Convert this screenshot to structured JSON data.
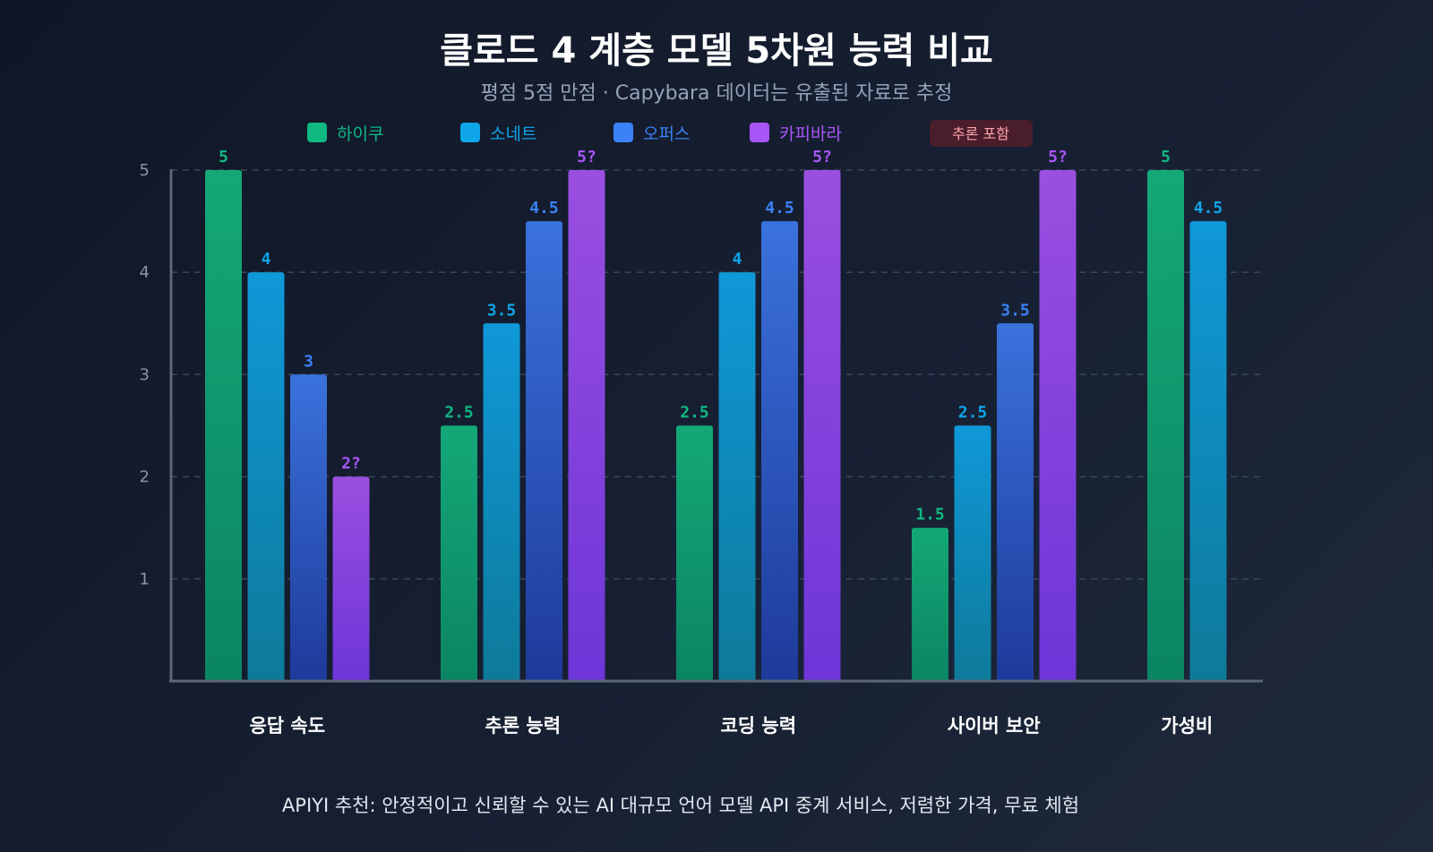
{
  "chart_data": {
    "type": "bar",
    "title": "클로드 4 계층 모델 5차원 능력 비교",
    "subtitle": "평점 5점 만점 · Capybara 데이터는 유출된 자료로 추정",
    "categories": [
      "응답 속도",
      "추론 능력",
      "코딩 능력",
      "사이버 보안",
      "가성비"
    ],
    "ylim": [
      0,
      5
    ],
    "yticks": [
      1,
      2,
      3,
      4,
      5
    ],
    "grid": true,
    "legend_position": "top",
    "series": [
      {
        "name": "하이쿠",
        "color": "#10b981",
        "values": [
          5,
          2.5,
          2.5,
          1.5,
          5
        ],
        "labels": [
          "5",
          "2.5",
          "2.5",
          "1.5",
          "5"
        ]
      },
      {
        "name": "소네트",
        "color": "#0ea5e9",
        "values": [
          4,
          3.5,
          4,
          2.5,
          4.5
        ],
        "labels": [
          "4",
          "3.5",
          "4",
          "2.5",
          "4.5"
        ]
      },
      {
        "name": "오퍼스",
        "color": "#3b82f6",
        "values": [
          3,
          4.5,
          4.5,
          3.5,
          null
        ],
        "labels": [
          "3",
          "4.5",
          "4.5",
          "3.5",
          ""
        ]
      },
      {
        "name": "카피바라",
        "color": "#a855f7",
        "values": [
          2,
          5,
          5,
          5,
          null
        ],
        "labels": [
          "2?",
          "5?",
          "5?",
          "5?",
          ""
        ]
      }
    ],
    "badge": "추론 포함",
    "footer": "APIYI 추천: 안정적이고 신뢰할 수 있는 AI 대규모 언어 모델 API 중계 서비스, 저렴한 가격, 무료 체험"
  }
}
